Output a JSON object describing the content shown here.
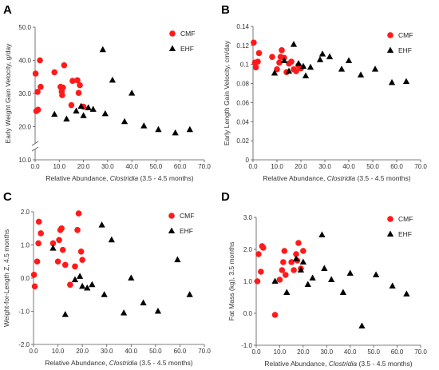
{
  "legend_labels": [
    "CMF",
    "EHF"
  ],
  "colors": {
    "CMF": "#ff1a1a",
    "EHF": "#000000"
  },
  "chart_data": [
    {
      "panel": "A",
      "type": "scatter",
      "xlabel_prefix": "Relative Abundance, ",
      "xlabel_italic": "Clostridia",
      "xlabel_suffix": " (3.5 - 4.5 months)",
      "ylabel": "Early Weight Gain Velocity, g/day",
      "xlim": [
        0,
        70
      ],
      "ylim": [
        10,
        50
      ],
      "y_axis_break": true,
      "xticks": [
        "0.0",
        "10.0",
        "20.0",
        "30.0",
        "40.0",
        "50.0",
        "60.0",
        "70.0"
      ],
      "yticks": [
        "10.0",
        "20.0",
        "30.0",
        "40.0",
        "50.0"
      ],
      "legend_position": "top-right",
      "series": [
        {
          "name": "CMF",
          "marker": "circle",
          "points": [
            [
              0.2,
              36
            ],
            [
              0.5,
              24.7
            ],
            [
              1,
              30.5
            ],
            [
              1.2,
              25.1
            ],
            [
              2,
              40
            ],
            [
              2.3,
              32
            ],
            [
              8,
              36.4
            ],
            [
              10.5,
              32
            ],
            [
              11,
              30.6
            ],
            [
              11.2,
              29.5
            ],
            [
              11.5,
              31.8
            ],
            [
              12,
              38.5
            ],
            [
              15,
              26.5
            ],
            [
              15.5,
              33.8
            ],
            [
              17.5,
              34
            ],
            [
              18,
              30.2
            ],
            [
              18.5,
              32.5
            ],
            [
              20,
              26
            ]
          ]
        },
        {
          "name": "EHF",
          "marker": "triangle",
          "points": [
            [
              8,
              23.7
            ],
            [
              13,
              22.3
            ],
            [
              17,
              24.7
            ],
            [
              19,
              26.1
            ],
            [
              20,
              23.3
            ],
            [
              22,
              25.7
            ],
            [
              24,
              25.2
            ],
            [
              28,
              43.2
            ],
            [
              29,
              23.9
            ],
            [
              32,
              34
            ],
            [
              37,
              21.5
            ],
            [
              40,
              30.1
            ],
            [
              45,
              20.2
            ],
            [
              51,
              19.1
            ],
            [
              58,
              18.1
            ],
            [
              64,
              19.1
            ]
          ]
        }
      ]
    },
    {
      "panel": "B",
      "type": "scatter",
      "xlabel_prefix": "Relative Abundance, ",
      "xlabel_italic": "Clostridia",
      "xlabel_suffix": " (3.5 - 4.5 months)",
      "ylabel": "Early Length Gain Velocity, cm/day",
      "xlim": [
        0,
        70
      ],
      "ylim": [
        0,
        0.14
      ],
      "y_axis_break": false,
      "xticks": [
        "0.0",
        "10.0",
        "20.0",
        "30.0",
        "40.0",
        "50.0",
        "60.0",
        "70.0"
      ],
      "yticks": [
        "0",
        "0.02",
        "0.04",
        "0.06",
        "0.08",
        "0.1",
        "0.12",
        "0.14"
      ],
      "legend_position": "top-right",
      "series": [
        {
          "name": "CMF",
          "marker": "circle",
          "points": [
            [
              0.3,
              0.123
            ],
            [
              0.8,
              0.102
            ],
            [
              1.2,
              0.097
            ],
            [
              2,
              0.103
            ],
            [
              2.5,
              0.112
            ],
            [
              8,
              0.108
            ],
            [
              10,
              0.095
            ],
            [
              11,
              0.102
            ],
            [
              11.5,
              0.108
            ],
            [
              12,
              0.115
            ],
            [
              13,
              0.107
            ],
            [
              14,
              0.092
            ],
            [
              15,
              0.101
            ],
            [
              16,
              0.103
            ],
            [
              17,
              0.095
            ],
            [
              18,
              0.093
            ],
            [
              19,
              0.099
            ],
            [
              20,
              0.096
            ]
          ]
        },
        {
          "name": "EHF",
          "marker": "triangle",
          "points": [
            [
              9,
              0.091
            ],
            [
              13,
              0.104
            ],
            [
              15,
              0.093
            ],
            [
              17,
              0.121
            ],
            [
              19,
              0.101
            ],
            [
              21,
              0.098
            ],
            [
              22,
              0.088
            ],
            [
              24,
              0.097
            ],
            [
              28,
              0.105
            ],
            [
              29,
              0.111
            ],
            [
              32,
              0.108
            ],
            [
              37,
              0.095
            ],
            [
              40,
              0.104
            ],
            [
              45,
              0.089
            ],
            [
              51,
              0.095
            ],
            [
              58,
              0.081
            ],
            [
              64,
              0.082
            ]
          ]
        }
      ]
    },
    {
      "panel": "C",
      "type": "scatter",
      "xlabel_prefix": "Relative Abundance, ",
      "xlabel_italic": "Clostridia",
      "xlabel_suffix": " (3.5 - 4.5 months)",
      "ylabel": "Weight-for-Length Z, 4.5 months",
      "xlim": [
        0,
        70
      ],
      "ylim": [
        -2,
        2
      ],
      "y_axis_break": false,
      "xticks": [
        "0.0",
        "10.0",
        "20.0",
        "30.0",
        "40.0",
        "50.0",
        "60.0",
        "70.0"
      ],
      "yticks": [
        "-2.0",
        "-1.0",
        "0.0",
        "1.0",
        "2.0"
      ],
      "legend_position": "top-right",
      "series": [
        {
          "name": "CMF",
          "marker": "circle",
          "points": [
            [
              0.2,
              0.1
            ],
            [
              0.5,
              -0.25
            ],
            [
              1.5,
              0.5
            ],
            [
              2,
              1.05
            ],
            [
              2.2,
              1.7
            ],
            [
              3,
              1.35
            ],
            [
              8,
              1.05
            ],
            [
              10,
              0.5
            ],
            [
              10.5,
              1.15
            ],
            [
              11,
              1.45
            ],
            [
              11.5,
              1.5
            ],
            [
              12,
              0.85
            ],
            [
              13,
              0.4
            ],
            [
              15,
              -0.2
            ],
            [
              17,
              0.35
            ],
            [
              18,
              1.45
            ],
            [
              18.5,
              1.95
            ],
            [
              19.5,
              0.8
            ],
            [
              20,
              0.55
            ]
          ]
        },
        {
          "name": "EHF",
          "marker": "triangle",
          "points": [
            [
              8,
              0.9
            ],
            [
              13,
              -1.1
            ],
            [
              17,
              -0.05
            ],
            [
              19,
              0.05
            ],
            [
              20,
              -0.25
            ],
            [
              22,
              -0.3
            ],
            [
              24,
              -0.2
            ],
            [
              28,
              1.6
            ],
            [
              29,
              -0.5
            ],
            [
              32,
              1.15
            ],
            [
              37,
              -1.05
            ],
            [
              40,
              0
            ],
            [
              45,
              -0.75
            ],
            [
              51,
              -1.0
            ],
            [
              59,
              0.55
            ],
            [
              64,
              -0.5
            ]
          ]
        }
      ]
    },
    {
      "panel": "D",
      "type": "scatter",
      "xlabel_prefix": "Relative Abundance, ",
      "xlabel_italic": "Clostridia",
      "xlabel_suffix": " (3.5 - 4.5 months)",
      "ylabel": "Fat Mass (kg), 3.5 months",
      "xlim": [
        0,
        70
      ],
      "ylim": [
        -1,
        3
      ],
      "y_axis_break": false,
      "xticks": [
        "0.0",
        "10.0",
        "20.0",
        "30.0",
        "40.0",
        "50.0",
        "60.0",
        "70.0"
      ],
      "yticks": [
        "-1.0",
        "0.0",
        "1.0",
        "2.0",
        "3.0"
      ],
      "legend_position": "top-right",
      "series": [
        {
          "name": "CMF",
          "marker": "circle",
          "points": [
            [
              0.5,
              1.0
            ],
            [
              1,
              1.85
            ],
            [
              2,
              1.3
            ],
            [
              2.5,
              2.1
            ],
            [
              3,
              2.05
            ],
            [
              8,
              -0.05
            ],
            [
              10,
              1.05
            ],
            [
              11,
              1.35
            ],
            [
              11.5,
              1.6
            ],
            [
              12,
              1.95
            ],
            [
              12.5,
              1.2
            ],
            [
              15,
              1.6
            ],
            [
              16,
              1.35
            ],
            [
              17,
              1.85
            ],
            [
              17.5,
              1.65
            ],
            [
              18,
              2.2
            ],
            [
              19,
              1.4
            ],
            [
              20,
              1.95
            ]
          ]
        },
        {
          "name": "EHF",
          "marker": "triangle",
          "points": [
            [
              8,
              1.0
            ],
            [
              13,
              0.65
            ],
            [
              17,
              1.7
            ],
            [
              19,
              1.35
            ],
            [
              20,
              1.6
            ],
            [
              22,
              0.9
            ],
            [
              24,
              1.1
            ],
            [
              28,
              2.45
            ],
            [
              29,
              1.4
            ],
            [
              32,
              1.05
            ],
            [
              37,
              0.65
            ],
            [
              40,
              1.25
            ],
            [
              45,
              -0.4
            ],
            [
              51,
              1.2
            ],
            [
              58,
              0.85
            ],
            [
              64,
              0.6
            ]
          ]
        }
      ]
    }
  ]
}
